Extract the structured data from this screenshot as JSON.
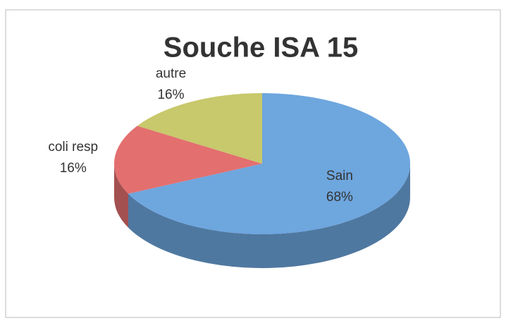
{
  "chart_data": {
    "type": "pie",
    "title": "Souche ISA 15",
    "categories": [
      "Sain",
      "coli resp",
      "autre"
    ],
    "values": [
      68,
      16,
      16
    ],
    "value_labels": [
      "68%",
      "16%",
      "16%"
    ],
    "colors": [
      "#6ea6de",
      "#e36f6f",
      "#c8c86c"
    ]
  }
}
